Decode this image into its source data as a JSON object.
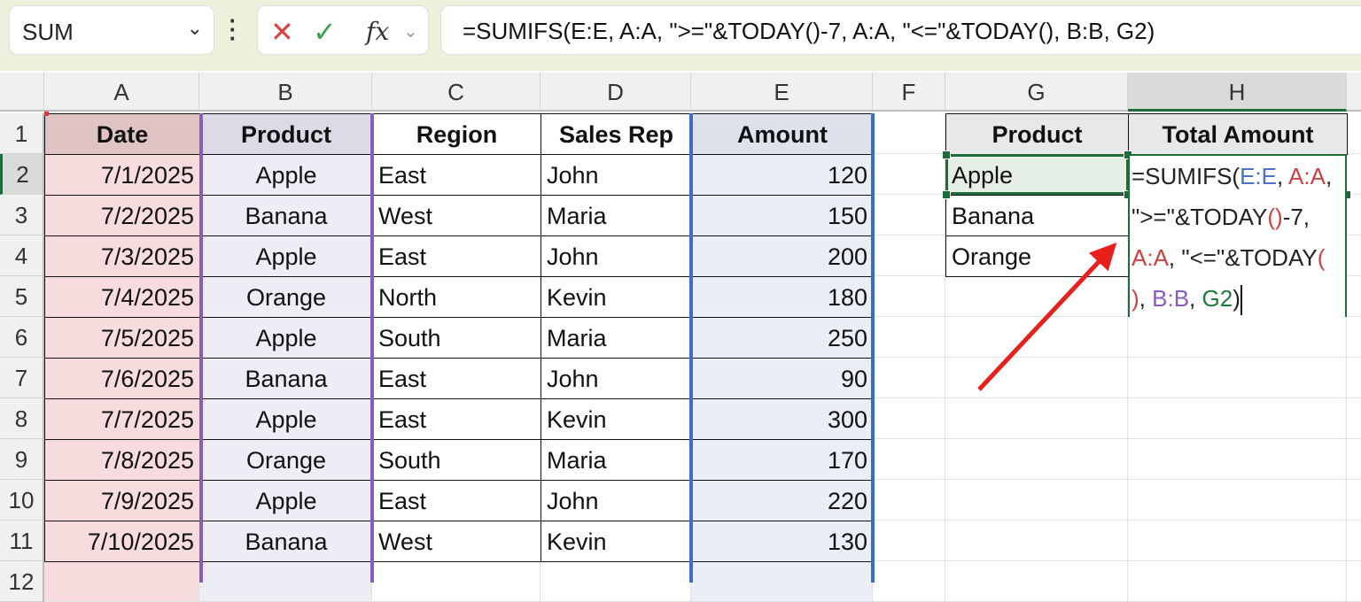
{
  "name_box": {
    "value": "SUM"
  },
  "formula_bar": {
    "cancel_icon": "x-icon",
    "enter_icon": "check-icon",
    "fx_label": "fx",
    "formula": "=SUMIFS(E:E, A:A, \">=\"&TODAY()-7, A:A, \"<=\"&TODAY(), B:B, G2)"
  },
  "columns": [
    "A",
    "B",
    "C",
    "D",
    "E",
    "F",
    "G",
    "H"
  ],
  "rows": [
    "1",
    "2",
    "3",
    "4",
    "5",
    "6",
    "7",
    "8",
    "9",
    "10",
    "11",
    "12"
  ],
  "table": {
    "headers": [
      "Date",
      "Product",
      "Region",
      "Sales Rep",
      "Amount"
    ],
    "rows": [
      [
        "7/1/2025",
        "Apple",
        "East",
        "John",
        "120"
      ],
      [
        "7/2/2025",
        "Banana",
        "West",
        "Maria",
        "150"
      ],
      [
        "7/3/2025",
        "Apple",
        "East",
        "John",
        "200"
      ],
      [
        "7/4/2025",
        "Orange",
        "North",
        "Kevin",
        "180"
      ],
      [
        "7/5/2025",
        "Apple",
        "South",
        "Maria",
        "250"
      ],
      [
        "7/6/2025",
        "Banana",
        "East",
        "John",
        "90"
      ],
      [
        "7/7/2025",
        "Apple",
        "East",
        "Kevin",
        "300"
      ],
      [
        "7/8/2025",
        "Orange",
        "South",
        "Maria",
        "170"
      ],
      [
        "7/9/2025",
        "Apple",
        "East",
        "John",
        "220"
      ],
      [
        "7/10/2025",
        "Banana",
        "West",
        "Kevin",
        "130"
      ]
    ]
  },
  "summary": {
    "headers": [
      "Product",
      "Total Amount"
    ],
    "products": [
      "Apple",
      "Banana",
      "Orange"
    ]
  },
  "in_cell_formula": {
    "p1": "=SUMIFS(",
    "r1": "E:E",
    ",": ", ",
    "r2": "A:A",
    "c2": ",",
    "l2a": "\">=\"&TODAY",
    "l2b": "(",
    "l2c": ")",
    "l2d": "-7,",
    "l3a": "A:A",
    "l3b": ", \"<=\"&TODAY",
    "l3c": "(",
    "l4a": ")",
    "l4b": ", ",
    "l4c": "B:B",
    "l4d": ", ",
    "l4e": "G2",
    "l4f": ")"
  },
  "colors": {
    "range_a": "#d04040",
    "range_b": "#8a5cc0",
    "range_e": "#4a72c8",
    "range_g": "#1e7a3c",
    "arrow": "#e8201c"
  }
}
